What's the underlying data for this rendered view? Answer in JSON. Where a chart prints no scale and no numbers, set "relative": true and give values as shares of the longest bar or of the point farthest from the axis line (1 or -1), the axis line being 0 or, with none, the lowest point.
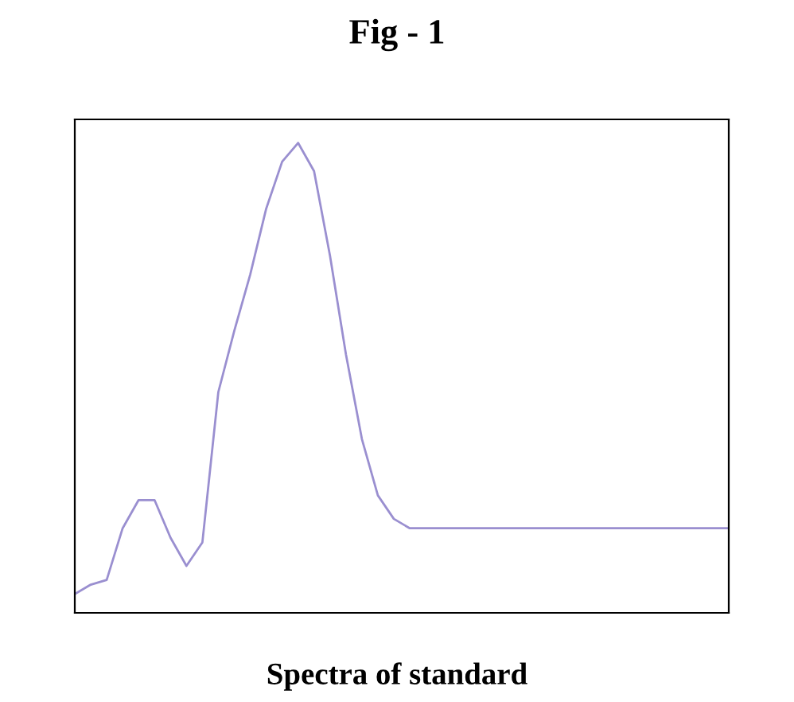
{
  "chart_data": {
    "type": "line",
    "title": "Fig - 1",
    "relative": true,
    "categories": [
      null,
      null,
      null,
      null,
      null,
      null,
      null,
      null,
      null,
      null,
      null,
      null,
      null,
      null,
      null,
      null,
      null,
      null,
      null,
      null,
      null,
      null,
      null,
      null,
      null,
      null,
      null,
      null,
      null,
      null,
      null,
      null,
      null,
      null,
      null,
      null,
      null,
      null,
      null,
      null,
      null,
      null
    ],
    "series": [
      {
        "color": "#9a8fd0",
        "values": [
          0.04,
          0.06,
          0.07,
          0.18,
          0.24,
          0.24,
          0.16,
          0.1,
          0.15,
          0.47,
          0.6,
          0.72,
          0.86,
          0.96,
          1.0,
          0.94,
          0.76,
          0.55,
          0.37,
          0.25,
          0.2,
          0.18,
          0.18,
          0.18,
          0.18,
          0.18,
          0.18,
          0.18,
          0.18,
          0.18,
          0.18,
          0.18,
          0.18,
          0.18,
          0.18,
          0.18,
          0.18,
          0.18,
          0.18,
          0.18,
          0.18,
          0.18
        ]
      }
    ],
    "annotations": [
      "Spectra of standard"
    ],
    "grid": false,
    "legend": false
  }
}
